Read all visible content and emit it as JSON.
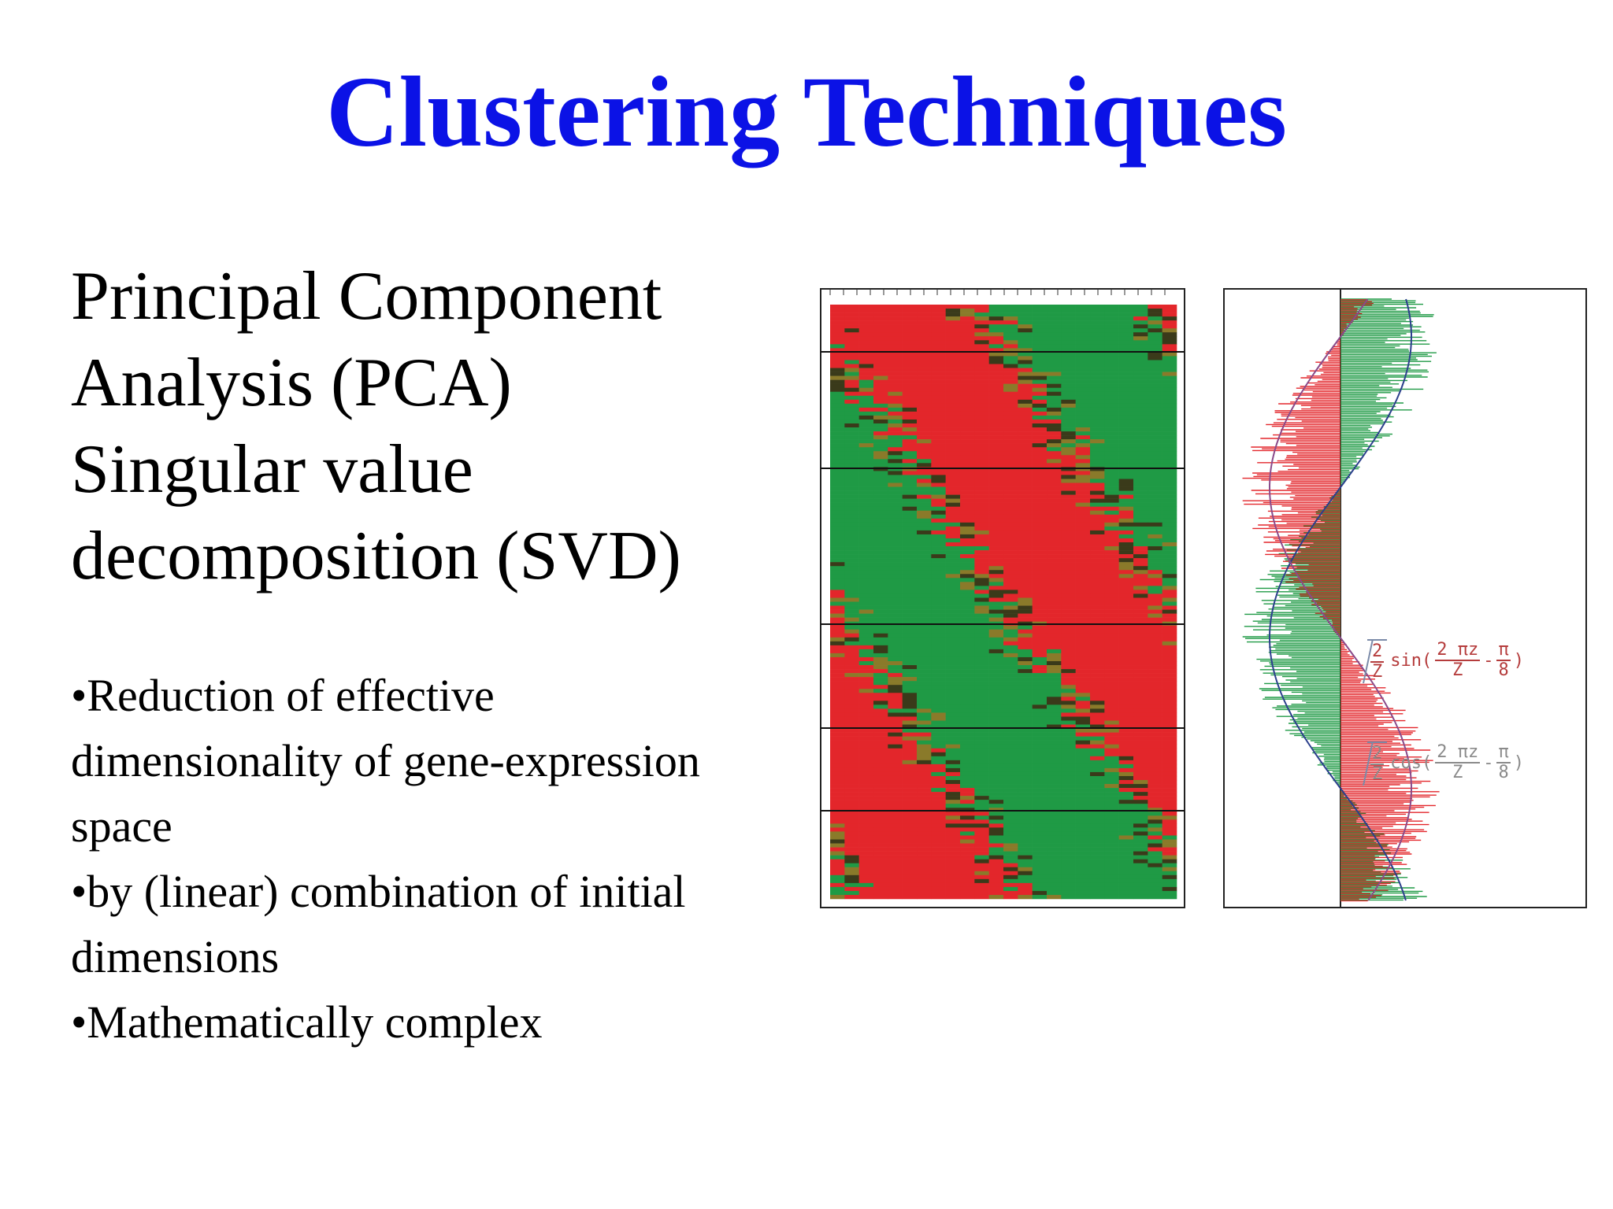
{
  "slide": {
    "title": "Clustering Techniques",
    "heading_lines": [
      "Principal Component",
      "Analysis (PCA)",
      "Singular value",
      "decomposition (SVD)"
    ],
    "bullets": [
      {
        "lines": [
          "•Reduction of effective",
          "dimensionality of gene-expression",
          "space"
        ]
      },
      {
        "lines": [
          "•by (linear) combination of initial",
          "dimensions"
        ]
      },
      {
        "lines": [
          "•Mathematically complex"
        ]
      }
    ]
  },
  "figure_right": {
    "formula_sin": {
      "coef_num": "2",
      "coef_den": "Z",
      "fn": "sin(",
      "arg_num": "2 πz",
      "arg_den": "Z",
      "minus": "-",
      "pi_num": "π",
      "pi_den": "8",
      "close": ")"
    },
    "formula_cos": {
      "coef_num": "2",
      "coef_den": "Z",
      "fn": "cos(",
      "arg_num": "2 πz",
      "arg_den": "Z",
      "minus": "-",
      "pi_num": "π",
      "pi_den": "8",
      "close": ")"
    }
  },
  "colors": {
    "title": "#0b12e6",
    "heat_red": "#e3262b",
    "heat_green": "#1f9a45",
    "curve_blue": "#2b3f8c"
  }
}
